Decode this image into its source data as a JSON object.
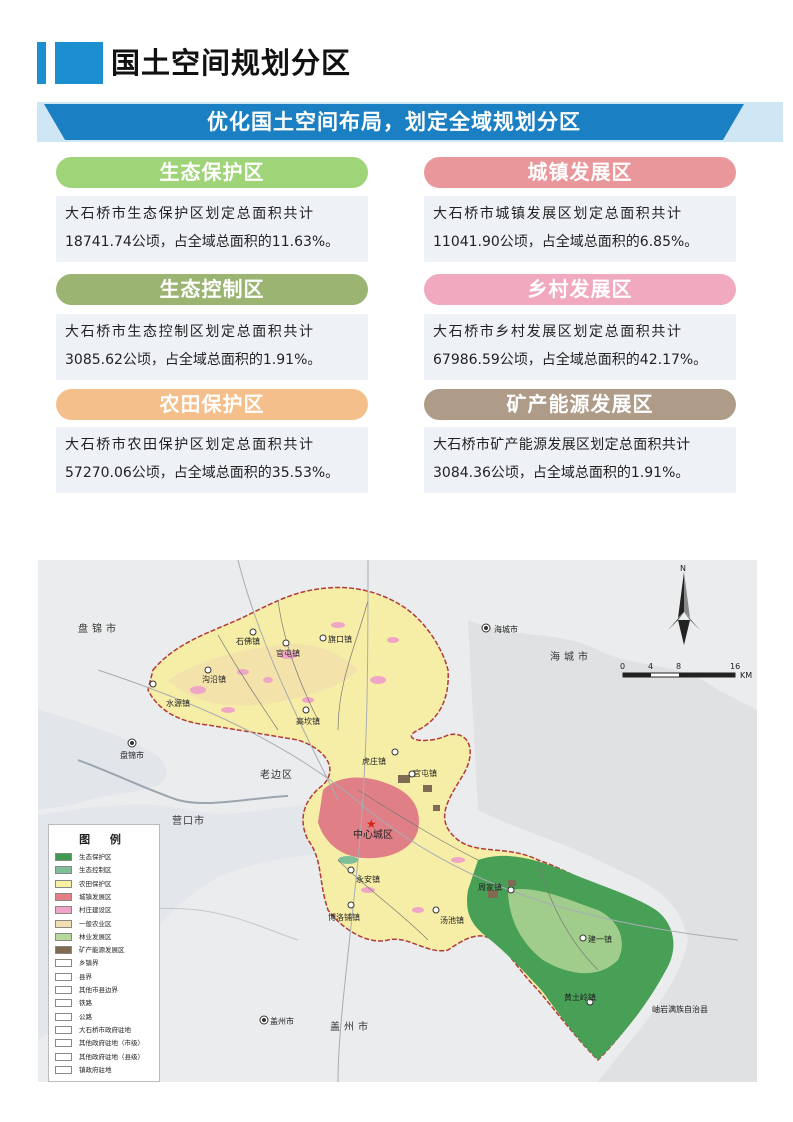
{
  "header": {
    "title": "国土空间规划分区"
  },
  "banner": {
    "text": "优化国土空间布局，划定全域规划分区"
  },
  "zones": [
    {
      "name": "生态保护区",
      "line1": "大石桥市生态保护区划定总面积共计",
      "line2": "18741.74公顷，占全域总面积的11.63%。",
      "color": "#9fd478"
    },
    {
      "name": "城镇发展区",
      "line1": "大石桥市城镇发展区划定总面积共计",
      "line2": "11041.90公顷，占全域总面积的6.85%。",
      "color": "#e9979a"
    },
    {
      "name": "生态控制区",
      "line1": "大石桥市生态控制区划定总面积共计",
      "line2": "3085.62公顷，占全域总面积的1.91%。",
      "color": "#9bb472"
    },
    {
      "name": "乡村发展区",
      "line1": "大石桥市乡村发展区划定总面积共计",
      "line2": "67986.59公顷，占全域总面积的42.17%。",
      "color": "#f0a9be"
    },
    {
      "name": "农田保护区",
      "line1": "大石桥市农田保护区划定总面积共计",
      "line2": "57270.06公顷，占全域总面积的35.53%。",
      "color": "#f5bf8c"
    },
    {
      "name": "矿产能源发展区",
      "line1": "大石桥市矿产能源发展区划定总面积共计",
      "line2": "3084.36公顷，占全域总面积的1.91%。",
      "color": "#ae9c89"
    }
  ],
  "map": {
    "places": {
      "panjin": "盘锦市",
      "haicheng_city": "海城市",
      "haicheng_pt": "海城市",
      "laobian": "老边区",
      "yingkou": "营口市",
      "gaizhou": "盖州市",
      "gaizhou_pt": "盖州市",
      "xiuyan": "岫岩满族自治县",
      "panshan": "盘锦市"
    },
    "towns": {
      "shifo": "石佛镇",
      "guankou": "官屯镇",
      "qikou": "旗口镇",
      "goujiang": "沟沿镇",
      "shuiyuan": "水源镇",
      "gaokan": "高坎镇",
      "huzhuang": "虎庄镇",
      "guantun": "官屯镇",
      "center": "中心城区",
      "yongan": "永安镇",
      "bodao": "博洛铺镇",
      "tangchi": "汤池镇",
      "zhoujia": "周家镇",
      "jiandao": "建一镇",
      "huangtu": "黄土岭镇"
    },
    "scale": {
      "t0": "0",
      "t1": "4",
      "t2": "8",
      "t3": "16",
      "unit": "KM"
    },
    "north": "N",
    "legend": {
      "title": "图 例",
      "items": [
        {
          "label": "生态保护区",
          "color": "#3f9a52"
        },
        {
          "label": "生态控制区",
          "color": "#7ebf98"
        },
        {
          "label": "农田保护区",
          "color": "#f7f0a4"
        },
        {
          "label": "城镇发展区",
          "color": "#e07f86"
        },
        {
          "label": "村庄建设区",
          "color": "#efa6c6"
        },
        {
          "label": "一般农业区",
          "color": "#f2deb0"
        },
        {
          "label": "林业发展区",
          "color": "#b6d89a"
        },
        {
          "label": "矿产能源发展区",
          "color": "#7f6a52"
        },
        {
          "label": "乡镇界",
          "color": "#ffffff"
        },
        {
          "label": "县界",
          "color": "#ffffff"
        },
        {
          "label": "其他市县边界",
          "color": "#ffffff"
        },
        {
          "label": "铁路",
          "color": "#ffffff"
        },
        {
          "label": "公路",
          "color": "#ffffff"
        },
        {
          "label": "大石桥市政府驻地",
          "color": "#ffffff"
        },
        {
          "label": "其他政府驻地（市级）",
          "color": "#ffffff"
        },
        {
          "label": "其他政府驻地（县级）",
          "color": "#ffffff"
        },
        {
          "label": "镇政府驻地",
          "color": "#ffffff"
        }
      ]
    }
  }
}
